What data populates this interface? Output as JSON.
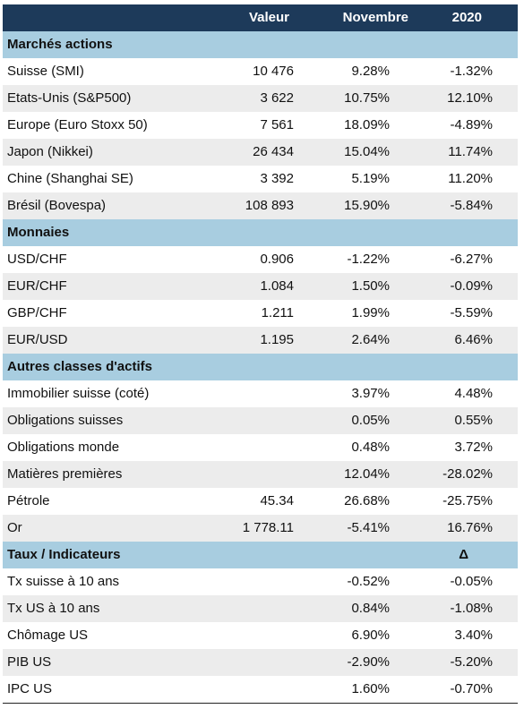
{
  "header": {
    "valeur": "Valeur",
    "novembre": "Novembre",
    "year": "2020"
  },
  "sections": [
    {
      "title": "Marchés actions",
      "rows": [
        {
          "label": "Suisse (SMI)",
          "valeur": "10 476",
          "novembre": "9.28%",
          "year": "-1.32%"
        },
        {
          "label": "Etats-Unis (S&P500)",
          "valeur": "3 622",
          "novembre": "10.75%",
          "year": "12.10%"
        },
        {
          "label": "Europe (Euro Stoxx 50)",
          "valeur": "7 561",
          "novembre": "18.09%",
          "year": "-4.89%"
        },
        {
          "label": "Japon (Nikkei)",
          "valeur": "26 434",
          "novembre": "15.04%",
          "year": "11.74%"
        },
        {
          "label": "Chine (Shanghai SE)",
          "valeur": "3 392",
          "novembre": "5.19%",
          "year": "11.20%"
        },
        {
          "label": "Brésil (Bovespa)",
          "valeur": "108 893",
          "novembre": "15.90%",
          "year": "-5.84%"
        }
      ]
    },
    {
      "title": "Monnaies",
      "rows": [
        {
          "label": "USD/CHF",
          "valeur": "0.906",
          "novembre": "-1.22%",
          "year": "-6.27%"
        },
        {
          "label": "EUR/CHF",
          "valeur": "1.084",
          "novembre": "1.50%",
          "year": "-0.09%"
        },
        {
          "label": "GBP/CHF",
          "valeur": "1.211",
          "novembre": "1.99%",
          "year": "-5.59%"
        },
        {
          "label": "EUR/USD",
          "valeur": "1.195",
          "novembre": "2.64%",
          "year": "6.46%"
        }
      ]
    },
    {
      "title": "Autres classes d'actifs",
      "rows": [
        {
          "label": "Immobilier suisse (coté)",
          "novembre": "3.97%",
          "year": "4.48%"
        },
        {
          "label": "Obligations suisses",
          "novembre": "0.05%",
          "year": "0.55%"
        },
        {
          "label": "Obligations monde",
          "novembre": "0.48%",
          "year": "3.72%"
        },
        {
          "label": "Matières premières",
          "novembre": "12.04%",
          "year": "-28.02%"
        },
        {
          "label": "Pétrole",
          "valeur": "45.34",
          "novembre": "26.68%",
          "year": "-25.75%"
        },
        {
          "label": "Or",
          "valeur": "1 778.11",
          "novembre": "-5.41%",
          "year": "16.76%"
        }
      ]
    },
    {
      "title": "Taux / Indicateurs",
      "delta": "Δ",
      "rows": [
        {
          "label": "Tx suisse à 10 ans",
          "novembre": "-0.52%",
          "year": "-0.05%"
        },
        {
          "label": "Tx US à 10 ans",
          "novembre": "0.84%",
          "year": "-1.08%"
        },
        {
          "label": "Chômage US",
          "novembre": "6.90%",
          "year": "3.40%"
        },
        {
          "label": "PIB US",
          "novembre": "-2.90%",
          "year": "-5.20%"
        },
        {
          "label": "IPC US",
          "novembre": "1.60%",
          "year": "-0.70%"
        }
      ]
    }
  ]
}
